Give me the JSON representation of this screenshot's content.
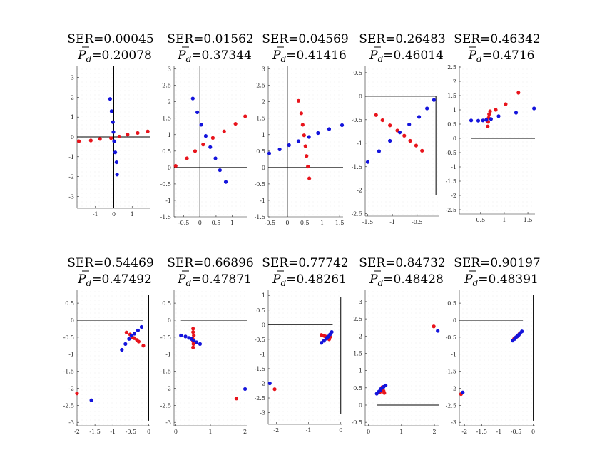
{
  "chart_data": [
    {
      "type": "scatter",
      "title_line1": "SER=0.00045",
      "title_line2": "=0.20078",
      "title_symbol": "P",
      "title_subscript": "d",
      "xlim": [
        -2,
        2
      ],
      "ylim": [
        -3.6,
        3.6
      ],
      "xticks": [
        -1,
        0,
        1
      ],
      "xtick_labels": [
        "-1",
        "0",
        "1"
      ],
      "yticks": [
        -3,
        -2,
        -1,
        0,
        1,
        2,
        3
      ],
      "ytick_labels": [
        "-3",
        "-2",
        "-1",
        "0",
        "1",
        "2",
        "3"
      ],
      "grid": true,
      "axis_lines": [
        {
          "dir": "h",
          "at": 0,
          "from": -2,
          "to": 2
        },
        {
          "dir": "v",
          "at": 0,
          "from": -3.6,
          "to": 3.6
        }
      ],
      "series": [
        {
          "name": "red",
          "color": "#e8141c",
          "x": [
            -1.9,
            -1.25,
            -0.75,
            -0.15,
            0.3,
            0.75,
            1.3,
            1.85
          ],
          "y": [
            -0.22,
            -0.18,
            -0.1,
            -0.06,
            0.02,
            0.12,
            0.2,
            0.28
          ]
        },
        {
          "name": "blue",
          "color": "#1414dc",
          "x": [
            -0.2,
            -0.12,
            -0.05,
            -0.02,
            0.02,
            0.08,
            0.15,
            0.18
          ],
          "y": [
            1.92,
            1.3,
            0.75,
            0.25,
            -0.22,
            -0.78,
            -1.28,
            -1.9
          ]
        }
      ]
    },
    {
      "type": "scatter",
      "title_line1": "SER=0.01562",
      "title_line2": "=0.37344",
      "title_symbol": "P",
      "title_subscript": "d",
      "xlim": [
        -0.8,
        1.45
      ],
      "ylim": [
        -1.5,
        3.1
      ],
      "xticks": [
        -0.5,
        0,
        0.5,
        1
      ],
      "xtick_labels": [
        "-0.5",
        "0",
        "0.5",
        "1"
      ],
      "yticks": [
        -1.5,
        -1,
        -0.5,
        0,
        0.5,
        1,
        1.5,
        2,
        2.5,
        3
      ],
      "ytick_labels": [
        "-1.5",
        "-1",
        "-0.5",
        "0",
        "0.5",
        "1",
        "1.5",
        "2",
        "2.5",
        "3"
      ],
      "grid": true,
      "axis_lines": [
        {
          "dir": "h",
          "at": 0,
          "from": -0.8,
          "to": 1.45
        },
        {
          "dir": "v",
          "at": 0,
          "from": -1.5,
          "to": 3.1
        }
      ],
      "series": [
        {
          "name": "red",
          "color": "#e8141c",
          "x": [
            -0.75,
            -0.4,
            -0.15,
            0.1,
            0.4,
            0.75,
            1.1,
            1.4
          ],
          "y": [
            0.05,
            0.28,
            0.5,
            0.7,
            0.9,
            1.1,
            1.33,
            1.56
          ]
        },
        {
          "name": "blue",
          "color": "#1414dc",
          "x": [
            -0.22,
            -0.08,
            0.04,
            0.18,
            0.32,
            0.48,
            0.62,
            0.8
          ],
          "y": [
            2.1,
            1.68,
            1.3,
            0.96,
            0.62,
            0.28,
            -0.08,
            -0.44
          ]
        }
      ]
    },
    {
      "type": "scatter",
      "title_line1": "SER=0.04569",
      "title_line2": "=0.41416",
      "title_symbol": "P",
      "title_subscript": "d",
      "xlim": [
        -0.55,
        1.6
      ],
      "ylim": [
        -1.5,
        3.1
      ],
      "xticks": [
        -0.5,
        0,
        0.5,
        1,
        1.5
      ],
      "xtick_labels": [
        "-0.5",
        "0",
        "0.5",
        "1",
        "1.5"
      ],
      "yticks": [
        -1.5,
        -1,
        -0.5,
        0,
        0.5,
        1,
        1.5,
        2,
        2.5,
        3
      ],
      "ytick_labels": [
        "-1.5",
        "-1",
        "-0.5",
        "0",
        "0.5",
        "1",
        "1.5",
        "2",
        "2.5",
        "3"
      ],
      "grid": true,
      "axis_lines": [
        {
          "dir": "h",
          "at": 0,
          "from": -0.55,
          "to": 1.6
        },
        {
          "dir": "v",
          "at": 0,
          "from": -1.5,
          "to": 3.1
        }
      ],
      "series": [
        {
          "name": "red",
          "color": "#e8141c",
          "x": [
            0.32,
            0.4,
            0.44,
            0.48,
            0.52,
            0.55,
            0.59,
            0.63
          ],
          "y": [
            2.03,
            1.65,
            1.3,
            0.98,
            0.65,
            0.35,
            0.03,
            -0.33
          ]
        },
        {
          "name": "blue",
          "color": "#1414dc",
          "x": [
            -0.52,
            -0.22,
            0.05,
            0.32,
            0.62,
            0.88,
            1.2,
            1.57
          ],
          "y": [
            0.43,
            0.55,
            0.68,
            0.8,
            0.93,
            1.05,
            1.17,
            1.29
          ]
        }
      ]
    },
    {
      "type": "scatter",
      "title_line1": "SER=0.26483",
      "title_line2": "=0.46014",
      "title_symbol": "P",
      "title_subscript": "d",
      "xlim": [
        -1.55,
        -0.05
      ],
      "ylim": [
        -2.55,
        0.65
      ],
      "xticks": [
        -1.5,
        -1,
        -0.5
      ],
      "xtick_labels": [
        "-1.5",
        "-1",
        "-0.5"
      ],
      "yticks": [
        -2.5,
        -2,
        -1.5,
        -1,
        -0.5,
        0,
        0.5
      ],
      "ytick_labels": [
        "-2.5",
        "-2",
        "-1.5",
        "-1",
        "-0.5",
        "0",
        "0.5"
      ],
      "grid": true,
      "axis_lines": [
        {
          "dir": "h",
          "at": 0,
          "from": -1.55,
          "to": -0.12
        },
        {
          "dir": "v",
          "at": -0.12,
          "from": -2.1,
          "to": 0
        }
      ],
      "series": [
        {
          "name": "red",
          "color": "#e8141c",
          "x": [
            -1.33,
            -1.2,
            -1.05,
            -0.9,
            -0.76,
            -0.64,
            -0.52,
            -0.4
          ],
          "y": [
            -0.4,
            -0.51,
            -0.62,
            -0.73,
            -0.84,
            -0.95,
            -1.05,
            -1.16
          ]
        },
        {
          "name": "blue",
          "color": "#1414dc",
          "x": [
            -1.5,
            -1.27,
            -1.05,
            -0.85,
            -0.66,
            -0.46,
            -0.3,
            -0.16
          ],
          "y": [
            -1.4,
            -1.17,
            -0.95,
            -0.77,
            -0.6,
            -0.44,
            -0.26,
            -0.08
          ]
        }
      ]
    },
    {
      "type": "scatter",
      "title_line1": "SER=0.46342",
      "title_line2": "=0.4716",
      "title_symbol": "P",
      "title_subscript": "d",
      "xlim": [
        0.05,
        1.65
      ],
      "ylim": [
        -2.65,
        2.55
      ],
      "xticks": [
        0.5,
        1,
        1.5
      ],
      "xtick_labels": [
        "0.5",
        "1",
        "1.5"
      ],
      "yticks": [
        -2.5,
        -2,
        -1.5,
        -1,
        -0.5,
        0,
        0.5,
        1,
        1.5,
        2,
        2.5
      ],
      "ytick_labels": [
        "-2.5",
        "-2",
        "-1.5",
        "-1",
        "-0.5",
        "0",
        "0.5",
        "1",
        "1.5",
        "2",
        "2.5"
      ],
      "grid": true,
      "axis_lines": [
        {
          "dir": "h",
          "at": 0,
          "from": 0.3,
          "to": 1.65
        }
      ],
      "series": [
        {
          "name": "red",
          "color": "#e8141c",
          "x": [
            0.65,
            0.66,
            0.67,
            0.68,
            0.7,
            0.82,
            1.03,
            1.3
          ],
          "y": [
            0.42,
            0.58,
            0.72,
            0.85,
            0.95,
            1.0,
            1.2,
            1.6
          ]
        },
        {
          "name": "blue",
          "color": "#1414dc",
          "x": [
            0.3,
            0.45,
            0.55,
            0.62,
            0.72,
            0.88,
            1.25,
            1.63
          ],
          "y": [
            0.63,
            0.62,
            0.63,
            0.65,
            0.68,
            0.78,
            0.9,
            1.05
          ]
        }
      ]
    },
    {
      "type": "scatter",
      "title_line1": "SER=0.54469",
      "title_line2": "=0.47492",
      "title_symbol": "P",
      "title_subscript": "d",
      "xlim": [
        -2,
        0.05
      ],
      "ylim": [
        -3.1,
        0.9
      ],
      "xticks": [
        -2,
        -1.5,
        -1,
        -0.5,
        0
      ],
      "xtick_labels": [
        "-2",
        "-1.5",
        "-1",
        "-0.5",
        "0"
      ],
      "yticks": [
        -3,
        -2.5,
        -2,
        -1.5,
        -1,
        -0.5,
        0,
        0.5
      ],
      "ytick_labels": [
        "-3",
        "-2.5",
        "-2",
        "-1.5",
        "-1",
        "-0.5",
        "0",
        "0.5"
      ],
      "grid": true,
      "axis_lines": [
        {
          "dir": "h",
          "at": 0,
          "from": -2,
          "to": -0.15
        },
        {
          "dir": "v",
          "at": 0,
          "from": -2.95,
          "to": 0.75
        }
      ],
      "series": [
        {
          "name": "red",
          "color": "#e8141c",
          "x": [
            -2.0,
            -0.62,
            -0.52,
            -0.46,
            -0.4,
            -0.33,
            -0.28,
            -0.15
          ],
          "y": [
            -2.15,
            -0.36,
            -0.42,
            -0.5,
            -0.53,
            -0.58,
            -0.63,
            -0.75
          ]
        },
        {
          "name": "blue",
          "color": "#1414dc",
          "x": [
            -1.6,
            -0.75,
            -0.65,
            -0.55,
            -0.48,
            -0.4,
            -0.3,
            -0.2
          ],
          "y": [
            -2.35,
            -0.87,
            -0.7,
            -0.55,
            -0.45,
            -0.4,
            -0.3,
            -0.2
          ]
        }
      ]
    },
    {
      "type": "scatter",
      "title_line1": "SER=0.66896",
      "title_line2": "=0.47871",
      "title_symbol": "P",
      "title_subscript": "d",
      "xlim": [
        -0.05,
        2.05
      ],
      "ylim": [
        -3.1,
        0.9
      ],
      "xticks": [
        0,
        1,
        2
      ],
      "xtick_labels": [
        "0",
        "1",
        "2"
      ],
      "yticks": [
        -3,
        -2.5,
        -2,
        -1.5,
        -1,
        -0.5,
        0,
        0.5
      ],
      "ytick_labels": [
        "-3",
        "-2.5",
        "-2",
        "-1.5",
        "-1",
        "-0.5",
        "0",
        "0.5"
      ],
      "grid": true,
      "axis_lines": [
        {
          "dir": "h",
          "at": 0,
          "from": 0.15,
          "to": 2.05
        }
      ],
      "series": [
        {
          "name": "red",
          "color": "#e8141c",
          "x": [
            0.5,
            0.5,
            0.52,
            0.49,
            0.5,
            0.51,
            0.5,
            1.75
          ],
          "y": [
            -0.25,
            -0.35,
            -0.45,
            -0.55,
            -0.62,
            -0.7,
            -0.8,
            -2.3
          ]
        },
        {
          "name": "blue",
          "color": "#1414dc",
          "x": [
            0.15,
            0.28,
            0.38,
            0.45,
            0.52,
            0.6,
            0.7,
            2.0
          ],
          "y": [
            -0.45,
            -0.48,
            -0.52,
            -0.55,
            -0.6,
            -0.65,
            -0.7,
            -2.02
          ]
        }
      ]
    },
    {
      "type": "scatter",
      "title_line1": "SER=0.77742",
      "title_line2": "=0.48261",
      "title_symbol": "P",
      "title_subscript": "d",
      "xlim": [
        -2.25,
        0.05
      ],
      "ylim": [
        -3.4,
        1.2
      ],
      "xticks": [
        -2,
        -1,
        0
      ],
      "xtick_labels": [
        "-2",
        "-1",
        "0"
      ],
      "yticks": [
        -3,
        -2.5,
        -2,
        -1.5,
        -1,
        -0.5,
        0,
        0.5,
        1
      ],
      "ytick_labels": [
        "-3",
        "-2.5",
        "-2",
        "-1.5",
        "-1",
        "-0.5",
        "0",
        "0.5",
        "1"
      ],
      "grid": true,
      "axis_lines": [
        {
          "dir": "h",
          "at": 0,
          "from": -2.25,
          "to": -0.25
        },
        {
          "dir": "v",
          "at": 0,
          "from": -3.05,
          "to": 0.95
        }
      ],
      "series": [
        {
          "name": "red",
          "color": "#e8141c",
          "x": [
            -2.05,
            -0.6,
            -0.52,
            -0.48,
            -0.44,
            -0.4,
            -0.36,
            -0.33
          ],
          "y": [
            -2.2,
            -0.35,
            -0.38,
            -0.4,
            -0.42,
            -0.45,
            -0.5,
            -0.42
          ]
        },
        {
          "name": "blue",
          "color": "#1414dc",
          "x": [
            -2.2,
            -0.6,
            -0.52,
            -0.45,
            -0.42,
            -0.38,
            -0.33,
            -0.28
          ],
          "y": [
            -2.0,
            -0.62,
            -0.55,
            -0.48,
            -0.44,
            -0.4,
            -0.33,
            -0.25
          ]
        }
      ]
    },
    {
      "type": "scatter",
      "title_line1": "SER=0.84732",
      "title_line2": "=0.48428",
      "title_symbol": "P",
      "title_subscript": "d",
      "xlim": [
        -0.1,
        2.15
      ],
      "ylim": [
        -0.6,
        3.35
      ],
      "xticks": [
        0,
        1,
        2
      ],
      "xtick_labels": [
        "0",
        "1",
        "2"
      ],
      "yticks": [
        -0.5,
        0,
        0.5,
        1,
        1.5,
        2,
        2.5,
        3
      ],
      "ytick_labels": [
        "-0.5",
        "0",
        "0.5",
        "1",
        "1.5",
        "2",
        "2.5",
        "3"
      ],
      "grid": true,
      "axis_lines": [
        {
          "dir": "h",
          "at": 0,
          "from": 0.25,
          "to": 2.15
        }
      ],
      "series": [
        {
          "name": "red",
          "color": "#e8141c",
          "x": [
            0.35,
            0.38,
            0.4,
            0.42,
            0.44,
            0.46,
            0.48,
            1.98
          ],
          "y": [
            0.38,
            0.42,
            0.47,
            0.52,
            0.45,
            0.4,
            0.35,
            2.28
          ]
        },
        {
          "name": "blue",
          "color": "#1414dc",
          "x": [
            0.25,
            0.3,
            0.35,
            0.38,
            0.42,
            0.46,
            0.52,
            2.1
          ],
          "y": [
            0.33,
            0.38,
            0.42,
            0.47,
            0.5,
            0.53,
            0.57,
            2.15
          ]
        }
      ]
    },
    {
      "type": "scatter",
      "title_line1": "SER=0.90197",
      "title_line2": "=0.48391",
      "title_symbol": "P",
      "title_subscript": "d",
      "xlim": [
        -2.15,
        0.05
      ],
      "ylim": [
        -3.1,
        0.9
      ],
      "xticks": [
        -2,
        -1.5,
        -1,
        -0.5,
        0
      ],
      "xtick_labels": [
        "-2",
        "-1.5",
        "-1",
        "-0.5",
        "0"
      ],
      "yticks": [
        -3,
        -2.5,
        -2,
        -1.5,
        -1,
        -0.5,
        0,
        0.5
      ],
      "ytick_labels": [
        "-3",
        "-2.5",
        "-2",
        "-1.5",
        "-1",
        "-0.5",
        "0",
        "0.5"
      ],
      "grid": true,
      "axis_lines": [
        {
          "dir": "h",
          "at": 0,
          "from": -2.15,
          "to": -0.3
        },
        {
          "dir": "v",
          "at": 0,
          "from": -2.95,
          "to": 0.75
        }
      ],
      "series": [
        {
          "name": "red",
          "color": "#e8141c",
          "x": [
            -2.1,
            -0.56,
            -0.52,
            -0.5,
            -0.47,
            -0.45,
            -0.42,
            -0.4
          ],
          "y": [
            -2.17,
            -0.55,
            -0.52,
            -0.5,
            -0.48,
            -0.46,
            -0.43,
            -0.4
          ]
        },
        {
          "name": "blue",
          "color": "#1414dc",
          "x": [
            -2.05,
            -0.6,
            -0.54,
            -0.5,
            -0.46,
            -0.42,
            -0.38,
            -0.33
          ],
          "y": [
            -2.12,
            -0.6,
            -0.55,
            -0.5,
            -0.47,
            -0.43,
            -0.38,
            -0.33
          ]
        }
      ]
    }
  ]
}
